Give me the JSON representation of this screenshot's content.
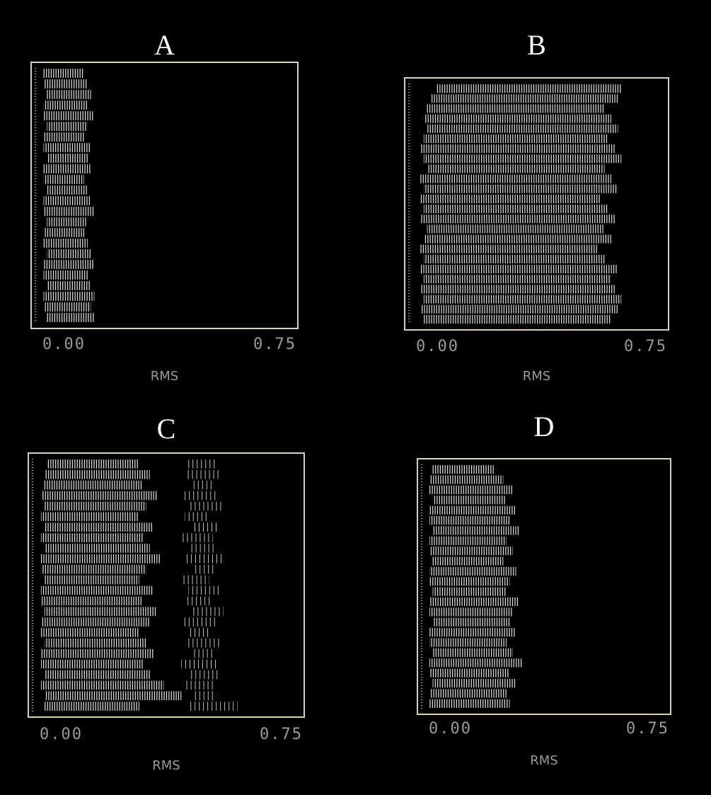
{
  "chart_data": [
    {
      "type": "range",
      "title": "A",
      "xlabel": "RMS",
      "color": "#ffffff",
      "xlim": [
        0,
        0.75
      ],
      "xticks": [
        {
          "value": 0,
          "label": "0.00"
        },
        0.75
      ],
      "series": [
        {
          "values": [
            [
              0.02,
              0.14
            ],
            [
              0.02,
              0.15
            ],
            [
              0.03,
              0.16
            ],
            [
              0.02,
              0.15
            ],
            [
              0.02,
              0.17
            ],
            [
              0.03,
              0.15
            ],
            [
              0.02,
              0.14
            ],
            [
              0.02,
              0.16
            ],
            [
              0.03,
              0.15
            ],
            [
              0.02,
              0.16
            ],
            [
              0.02,
              0.14
            ],
            [
              0.03,
              0.15
            ],
            [
              0.02,
              0.16
            ],
            [
              0.02,
              0.17
            ],
            [
              0.03,
              0.15
            ],
            [
              0.02,
              0.14
            ],
            [
              0.02,
              0.15
            ],
            [
              0.03,
              0.16
            ],
            [
              0.02,
              0.17
            ],
            [
              0.02,
              0.15
            ],
            [
              0.03,
              0.16
            ],
            [
              0.02,
              0.17
            ],
            [
              0.02,
              0.16
            ],
            [
              0.03,
              0.17
            ]
          ]
        }
      ]
    },
    {
      "type": "range",
      "title": "B",
      "xlabel": "RMS",
      "color": "#ffffff",
      "xlim": [
        0,
        0.75
      ],
      "xticks": [
        {
          "value": 0,
          "label": "0.00"
        },
        0.75
      ],
      "series": [
        {
          "values": [
            [
              0.08,
              0.63
            ],
            [
              0.06,
              0.62
            ],
            [
              0.05,
              0.58
            ],
            [
              0.04,
              0.6
            ],
            [
              0.05,
              0.62
            ],
            [
              0.04,
              0.59
            ],
            [
              0.03,
              0.61
            ],
            [
              0.04,
              0.63
            ],
            [
              0.05,
              0.58
            ],
            [
              0.03,
              0.6
            ],
            [
              0.04,
              0.62
            ],
            [
              0.03,
              0.57
            ],
            [
              0.04,
              0.59
            ],
            [
              0.03,
              0.61
            ],
            [
              0.05,
              0.58
            ],
            [
              0.04,
              0.6
            ],
            [
              0.03,
              0.56
            ],
            [
              0.04,
              0.58
            ],
            [
              0.03,
              0.62
            ],
            [
              0.04,
              0.6
            ],
            [
              0.03,
              0.61
            ],
            [
              0.04,
              0.63
            ],
            [
              0.03,
              0.62
            ],
            [
              0.04,
              0.6
            ]
          ]
        }
      ]
    },
    {
      "type": "range",
      "title": "C",
      "xlabel": "RMS",
      "color": "#ffffff",
      "xlim": [
        0,
        0.75
      ],
      "xticks": [
        {
          "value": 0,
          "label": "0.00"
        },
        0.75
      ],
      "series": [
        {
          "values": [
            [
              0.04,
              0.3
            ],
            [
              0.03,
              0.33
            ],
            [
              0.03,
              0.31
            ],
            [
              0.02,
              0.35
            ],
            [
              0.03,
              0.32
            ],
            [
              0.02,
              0.3
            ],
            [
              0.03,
              0.34
            ],
            [
              0.02,
              0.31
            ],
            [
              0.03,
              0.33
            ],
            [
              0.02,
              0.36
            ],
            [
              0.02,
              0.32
            ],
            [
              0.03,
              0.3
            ],
            [
              0.02,
              0.34
            ],
            [
              0.02,
              0.31
            ],
            [
              0.03,
              0.35
            ],
            [
              0.02,
              0.33
            ],
            [
              0.02,
              0.3
            ],
            [
              0.03,
              0.32
            ],
            [
              0.02,
              0.34
            ],
            [
              0.02,
              0.31
            ],
            [
              0.03,
              0.33
            ],
            [
              0.02,
              0.37
            ],
            [
              0.03,
              0.42
            ],
            [
              0.03,
              0.3
            ]
          ]
        },
        {
          "values": [
            [
              0.44,
              0.52
            ],
            [
              0.43,
              0.53
            ],
            [
              0.45,
              0.51
            ],
            [
              0.42,
              0.52
            ],
            [
              0.44,
              0.54
            ],
            [
              0.43,
              0.5
            ],
            [
              0.45,
              0.53
            ],
            [
              0.42,
              0.51
            ],
            [
              0.44,
              0.52
            ],
            [
              0.43,
              0.54
            ],
            [
              0.45,
              0.52
            ],
            [
              0.42,
              0.5
            ],
            [
              0.44,
              0.53
            ],
            [
              0.43,
              0.51
            ],
            [
              0.45,
              0.54
            ],
            [
              0.42,
              0.52
            ],
            [
              0.44,
              0.5
            ],
            [
              0.43,
              0.53
            ],
            [
              0.45,
              0.51
            ],
            [
              0.42,
              0.52
            ],
            [
              0.44,
              0.53
            ],
            [
              0.43,
              0.51
            ],
            [
              0.45,
              0.52
            ],
            [
              0.44,
              0.58
            ]
          ]
        }
      ]
    },
    {
      "type": "range",
      "title": "D",
      "xlabel": "RMS",
      "color": "#ffffff",
      "xlim": [
        0,
        0.75
      ],
      "xticks": [
        {
          "value": 0,
          "label": "0.00"
        },
        0.75
      ],
      "series": [
        {
          "values": [
            [
              0.03,
              0.22
            ],
            [
              0.02,
              0.25
            ],
            [
              0.02,
              0.28
            ],
            [
              0.03,
              0.26
            ],
            [
              0.02,
              0.29
            ],
            [
              0.02,
              0.27
            ],
            [
              0.03,
              0.3
            ],
            [
              0.02,
              0.26
            ],
            [
              0.02,
              0.28
            ],
            [
              0.03,
              0.25
            ],
            [
              0.02,
              0.29
            ],
            [
              0.02,
              0.27
            ],
            [
              0.03,
              0.26
            ],
            [
              0.02,
              0.3
            ],
            [
              0.02,
              0.28
            ],
            [
              0.03,
              0.27
            ],
            [
              0.02,
              0.29
            ],
            [
              0.02,
              0.26
            ],
            [
              0.03,
              0.28
            ],
            [
              0.02,
              0.31
            ],
            [
              0.02,
              0.27
            ],
            [
              0.03,
              0.29
            ],
            [
              0.02,
              0.26
            ],
            [
              0.02,
              0.27
            ]
          ]
        }
      ]
    }
  ]
}
